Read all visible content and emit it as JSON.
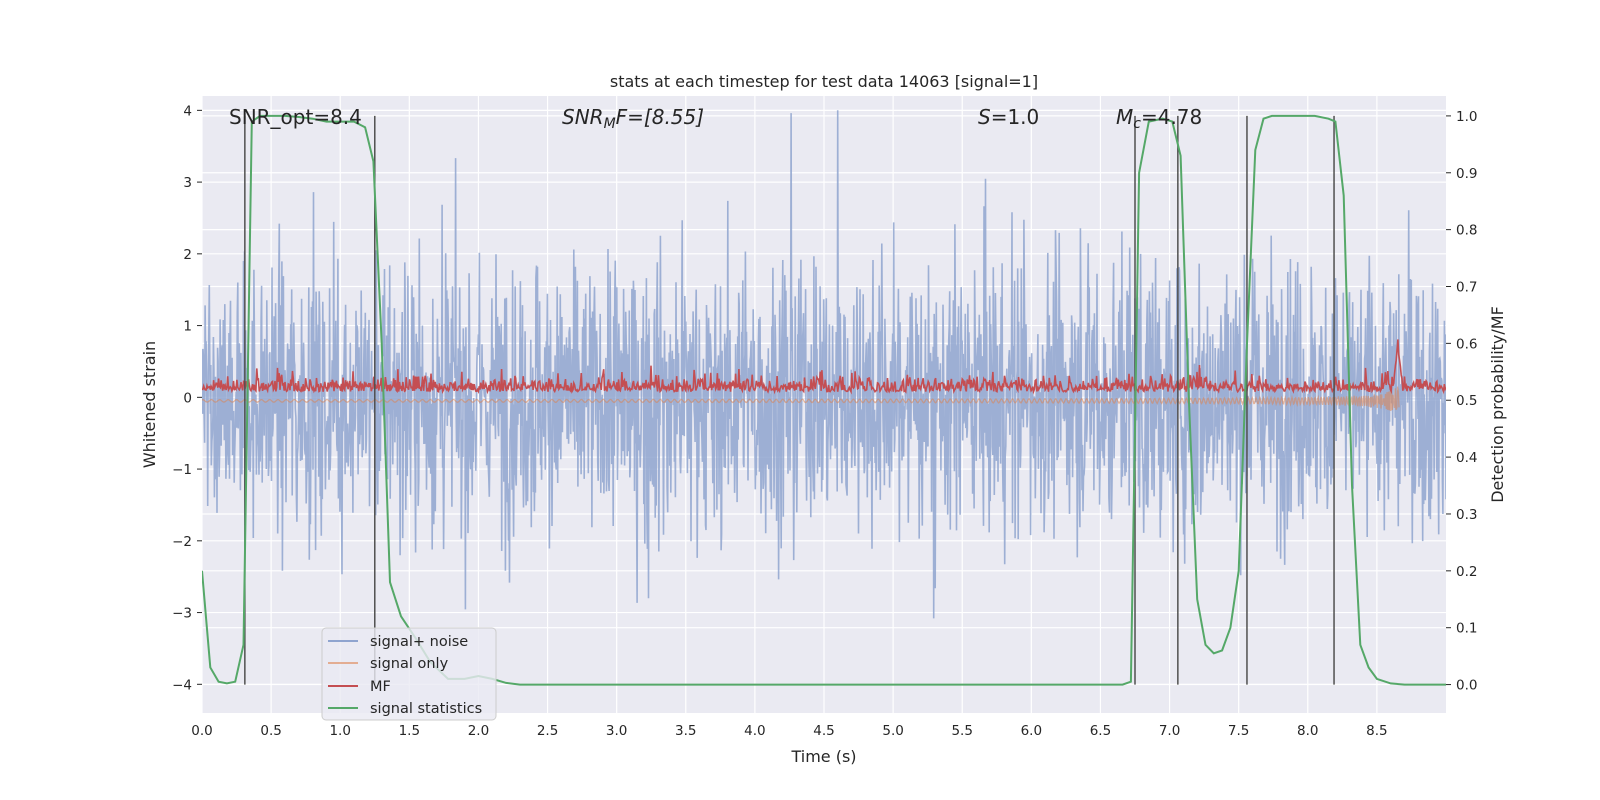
{
  "chart_data": {
    "type": "line",
    "title": "stats at each timestep for test data 14063 [signal=1]",
    "xlabel": "Time (s)",
    "ylabel": "Whitened strain",
    "y2label": "Detection probability/MF",
    "xlim": [
      0,
      9.0
    ],
    "ylim": [
      -4.4,
      4.2
    ],
    "y2lim": [
      -0.05,
      1.035
    ],
    "x_ticks": [
      0.0,
      0.5,
      1.0,
      1.5,
      2.0,
      2.5,
      3.0,
      3.5,
      4.0,
      4.5,
      5.0,
      5.5,
      6.0,
      6.5,
      7.0,
      7.5,
      8.0,
      8.5
    ],
    "x_tick_labels": [
      "0.0",
      "0.5",
      "1.0",
      "1.5",
      "2.0",
      "2.5",
      "3.0",
      "3.5",
      "4.0",
      "4.5",
      "5.0",
      "5.5",
      "6.0",
      "6.5",
      "7.0",
      "7.5",
      "8.0",
      "8.5"
    ],
    "y_ticks": [
      4,
      3,
      2,
      1,
      0,
      -1,
      -2,
      -3,
      -4
    ],
    "y_tick_labels": [
      "4",
      "3",
      "2",
      "1",
      "0",
      "−1",
      "−2",
      "−3",
      "−4"
    ],
    "y2_ticks": [
      1.0,
      0.9,
      0.8,
      0.7,
      0.6,
      0.5,
      0.4,
      0.3,
      0.2,
      0.1,
      0.0
    ],
    "y2_tick_labels": [
      "1.0",
      "0.9",
      "0.8",
      "0.7",
      "0.6",
      "0.5",
      "0.4",
      "0.3",
      "0.2",
      "0.1",
      "0.0"
    ],
    "annotations": [
      "SNR_opt=8.4",
      "SNR",
      "M",
      "F=[8.55]",
      "S",
      "=1.0",
      "M",
      "c",
      "=4.78"
    ],
    "legend": {
      "location": "lower left",
      "entries": [
        "signal+ noise",
        "signal only",
        "MF",
        "signal statistics"
      ]
    },
    "colors": {
      "noise": "#8fa4cf",
      "signal": "#dd8452",
      "mf": "#c44e52",
      "stats": "#55a868",
      "background": "#eaeaf2",
      "grid": "#ffffff",
      "vline": "#505050"
    },
    "vlines_x": [
      0.31,
      1.25,
      6.75,
      7.06,
      7.56,
      8.19
    ],
    "series": [
      {
        "name": "signal statistics",
        "axis": "right",
        "x": [
          0.0,
          0.06,
          0.12,
          0.18,
          0.24,
          0.3,
          0.36,
          0.42,
          0.5,
          0.6,
          0.7,
          0.8,
          0.9,
          1.0,
          1.1,
          1.18,
          1.24,
          1.3,
          1.36,
          1.44,
          1.55,
          1.65,
          1.78,
          1.9,
          2.0,
          2.1,
          2.2,
          2.3,
          2.4,
          3.0,
          4.0,
          5.0,
          6.0,
          6.5,
          6.66,
          6.72,
          6.78,
          6.85,
          6.95,
          7.02,
          7.08,
          7.14,
          7.2,
          7.26,
          7.32,
          7.38,
          7.44,
          7.5,
          7.56,
          7.62,
          7.68,
          7.74,
          7.85,
          7.95,
          8.05,
          8.15,
          8.2,
          8.26,
          8.32,
          8.38,
          8.44,
          8.5,
          8.6,
          8.7,
          9.0
        ],
        "values": [
          0.2,
          0.03,
          0.005,
          0.002,
          0.005,
          0.07,
          0.99,
          1.0,
          1.0,
          1.0,
          0.998,
          0.995,
          0.99,
          0.99,
          0.99,
          0.98,
          0.92,
          0.6,
          0.18,
          0.12,
          0.08,
          0.04,
          0.01,
          0.01,
          0.015,
          0.01,
          0.003,
          0.0,
          0.0,
          0.0,
          0.0,
          0.0,
          0.0,
          0.0,
          0.0,
          0.005,
          0.9,
          0.99,
          0.995,
          0.99,
          0.93,
          0.5,
          0.15,
          0.07,
          0.055,
          0.06,
          0.1,
          0.2,
          0.6,
          0.94,
          0.995,
          1.0,
          1.0,
          1.0,
          1.0,
          0.995,
          0.99,
          0.86,
          0.35,
          0.07,
          0.03,
          0.01,
          0.002,
          0.0,
          0.0
        ]
      }
    ]
  }
}
